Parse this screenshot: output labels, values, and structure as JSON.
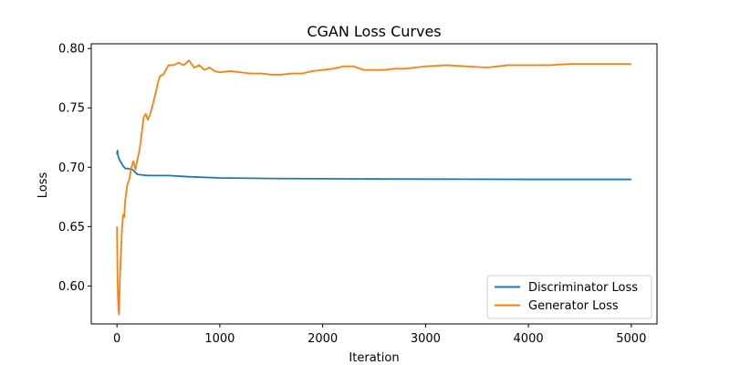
{
  "chart_data": {
    "type": "line",
    "title": "CGAN Loss Curves",
    "xlabel": "Iteration",
    "ylabel": "Loss",
    "xlim": [
      -250,
      5250
    ],
    "ylim": [
      0.568,
      0.804
    ],
    "xticks": [
      0,
      1000,
      2000,
      3000,
      4000,
      5000
    ],
    "yticks": [
      0.6,
      0.65,
      0.7,
      0.75,
      0.8
    ],
    "ytick_labels": [
      "0.60",
      "0.65",
      "0.70",
      "0.75",
      "0.80"
    ],
    "grid": false,
    "legend": "lower-right",
    "series": [
      {
        "name": "Discriminator Loss",
        "color": "#1f77b4",
        "x": [
          0,
          5,
          10,
          20,
          40,
          60,
          80,
          100,
          150,
          200,
          300,
          400,
          500,
          700,
          1000,
          1500,
          2000,
          3000,
          4000,
          5000
        ],
        "y": [
          0.711,
          0.714,
          0.71,
          0.707,
          0.704,
          0.701,
          0.699,
          0.699,
          0.698,
          0.694,
          0.693,
          0.693,
          0.693,
          0.692,
          0.691,
          0.6905,
          0.6903,
          0.69,
          0.6898,
          0.6898
        ]
      },
      {
        "name": "Generator Loss",
        "color": "#ff7f0e",
        "x": [
          0,
          5,
          10,
          15,
          20,
          30,
          40,
          50,
          60,
          70,
          80,
          100,
          120,
          140,
          160,
          180,
          200,
          220,
          240,
          260,
          280,
          300,
          320,
          340,
          360,
          380,
          400,
          420,
          450,
          500,
          550,
          600,
          650,
          700,
          750,
          800,
          850,
          900,
          950,
          1000,
          1100,
          1200,
          1300,
          1400,
          1500,
          1600,
          1700,
          1800,
          1900,
          2000,
          2100,
          2200,
          2300,
          2400,
          2500,
          2600,
          2700,
          2800,
          2900,
          3000,
          3200,
          3400,
          3600,
          3800,
          4000,
          4200,
          4400,
          4600,
          4800,
          5000
        ],
        "y": [
          0.65,
          0.61,
          0.59,
          0.58,
          0.576,
          0.61,
          0.63,
          0.65,
          0.66,
          0.658,
          0.672,
          0.685,
          0.69,
          0.7,
          0.705,
          0.698,
          0.707,
          0.715,
          0.728,
          0.742,
          0.745,
          0.74,
          0.744,
          0.75,
          0.757,
          0.764,
          0.772,
          0.777,
          0.778,
          0.786,
          0.786,
          0.788,
          0.786,
          0.79,
          0.784,
          0.786,
          0.782,
          0.784,
          0.781,
          0.78,
          0.781,
          0.78,
          0.779,
          0.779,
          0.778,
          0.778,
          0.779,
          0.779,
          0.781,
          0.782,
          0.783,
          0.785,
          0.785,
          0.782,
          0.782,
          0.782,
          0.783,
          0.783,
          0.784,
          0.785,
          0.786,
          0.785,
          0.784,
          0.786,
          0.786,
          0.786,
          0.787,
          0.787,
          0.787,
          0.787
        ]
      }
    ]
  }
}
